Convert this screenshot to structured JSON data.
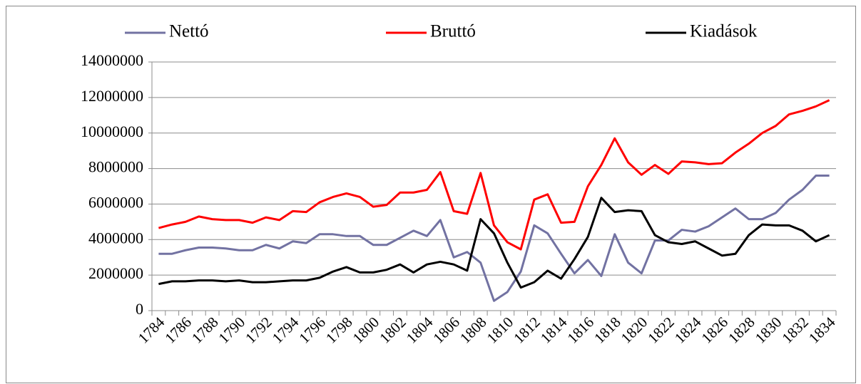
{
  "chart_data": {
    "type": "line",
    "categories": [
      "1784",
      null,
      "1786",
      null,
      "1788",
      null,
      "1790",
      null,
      "1792",
      null,
      "1794",
      null,
      "1796",
      null,
      "1798",
      null,
      "1800",
      null,
      "1802",
      null,
      "1804",
      null,
      "1806",
      null,
      "1808",
      null,
      "1810",
      null,
      "1812",
      null,
      "1814",
      null,
      "1816",
      null,
      "1818",
      null,
      "1820",
      null,
      "1822",
      null,
      "1824",
      null,
      "1826",
      null,
      "1828",
      null,
      "1830",
      null,
      "1832",
      null,
      "1834"
    ],
    "series": [
      {
        "name": "Nettó",
        "color": "#7272a2",
        "values": [
          3200000,
          3200000,
          3400000,
          3550000,
          3550000,
          3500000,
          3400000,
          3400000,
          3700000,
          3500000,
          3900000,
          3800000,
          4300000,
          4300000,
          4200000,
          4200000,
          3700000,
          3700000,
          4100000,
          4500000,
          4200000,
          5100000,
          3000000,
          3300000,
          2700000,
          550000,
          1050000,
          2200000,
          4800000,
          4350000,
          3200000,
          2100000,
          2850000,
          1950000,
          4300000,
          2700000,
          2100000,
          3950000,
          3950000,
          4550000,
          4450000,
          4750000,
          5250000,
          5750000,
          5150000,
          5150000,
          5500000,
          6250000,
          6800000,
          7600000,
          7600000
        ]
      },
      {
        "name": "Bruttó",
        "color": "#ff0000",
        "values": [
          4650000,
          4850000,
          5000000,
          5300000,
          5150000,
          5100000,
          5100000,
          4950000,
          5250000,
          5100000,
          5600000,
          5550000,
          6100000,
          6400000,
          6600000,
          6400000,
          5850000,
          5950000,
          6650000,
          6650000,
          6800000,
          7800000,
          5600000,
          5450000,
          7750000,
          4800000,
          3850000,
          3450000,
          6250000,
          6550000,
          4950000,
          5000000,
          7000000,
          8200000,
          9700000,
          8350000,
          7650000,
          8200000,
          7700000,
          8400000,
          8350000,
          8250000,
          8300000,
          8900000,
          9400000,
          10000000,
          10400000,
          11050000,
          11250000,
          11500000,
          11850000
        ]
      },
      {
        "name": "Kiadások",
        "color": "#000000",
        "values": [
          1500000,
          1650000,
          1650000,
          1700000,
          1700000,
          1650000,
          1700000,
          1600000,
          1600000,
          1650000,
          1700000,
          1700000,
          1850000,
          2200000,
          2450000,
          2150000,
          2150000,
          2300000,
          2600000,
          2150000,
          2600000,
          2750000,
          2600000,
          2250000,
          5150000,
          4350000,
          2700000,
          1300000,
          1600000,
          2250000,
          1800000,
          2900000,
          4150000,
          6350000,
          5550000,
          5650000,
          5600000,
          4250000,
          3850000,
          3750000,
          3900000,
          3500000,
          3100000,
          3200000,
          4250000,
          4850000,
          4800000,
          4800000,
          4500000,
          3900000,
          4250000
        ]
      }
    ],
    "ylim": [
      0,
      14000000
    ],
    "yticks": [
      0,
      2000000,
      4000000,
      6000000,
      8000000,
      10000000,
      12000000,
      14000000
    ],
    "grid": true,
    "legend": "top"
  }
}
